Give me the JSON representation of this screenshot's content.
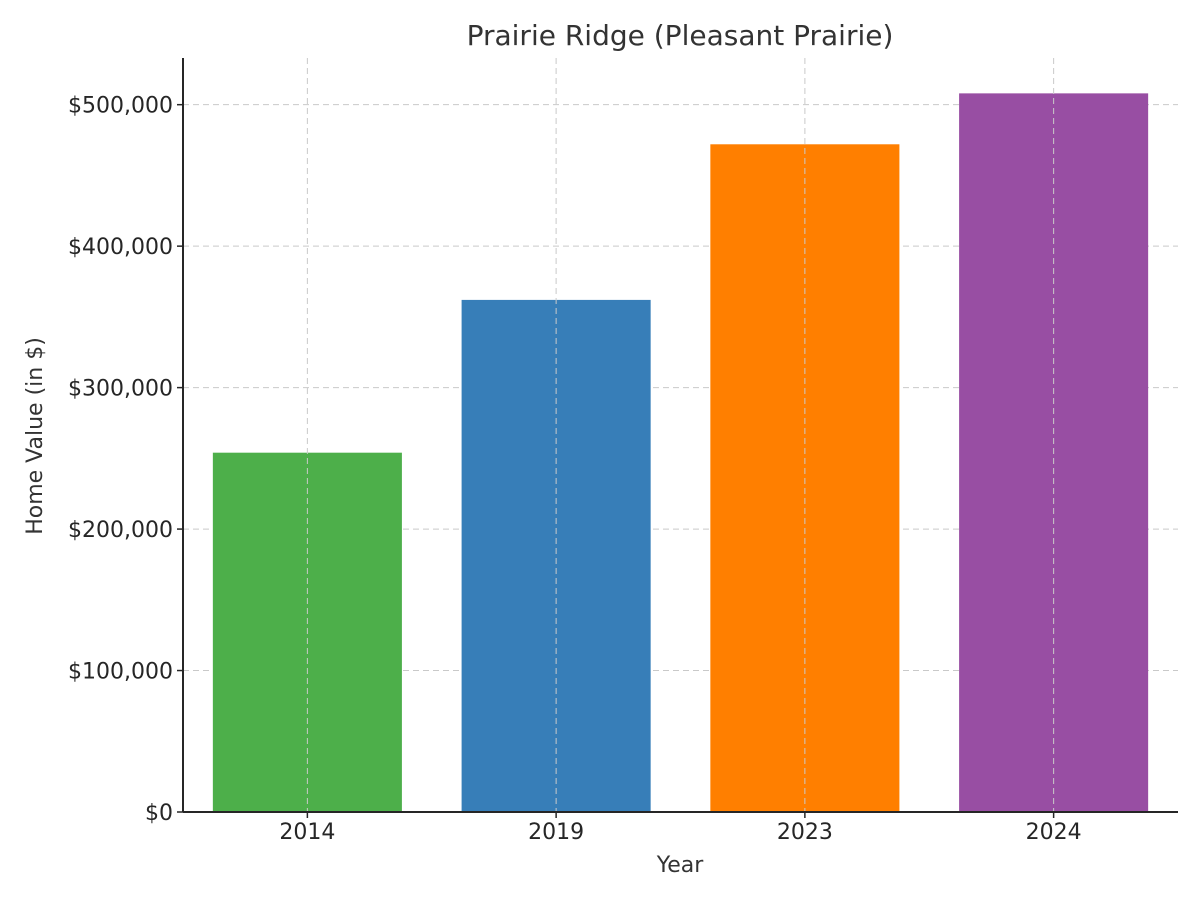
{
  "chart_data": {
    "type": "bar",
    "title": "Prairie Ridge (Pleasant Prairie)",
    "xlabel": "Year",
    "ylabel": "Home Value (in $)",
    "categories": [
      "2014",
      "2019",
      "2023",
      "2024"
    ],
    "values": [
      254000,
      362000,
      472000,
      508000
    ],
    "colors": [
      "#4daf4a",
      "#377eb8",
      "#ff7f00",
      "#984ea3"
    ],
    "ylim": [
      0,
      533000
    ],
    "yticks": [
      0,
      100000,
      200000,
      300000,
      400000,
      500000
    ],
    "ytick_labels": [
      "$0",
      "$100,000",
      "$200,000",
      "$300,000",
      "$400,000",
      "$500,000"
    ],
    "grid": true,
    "legend": false
  }
}
